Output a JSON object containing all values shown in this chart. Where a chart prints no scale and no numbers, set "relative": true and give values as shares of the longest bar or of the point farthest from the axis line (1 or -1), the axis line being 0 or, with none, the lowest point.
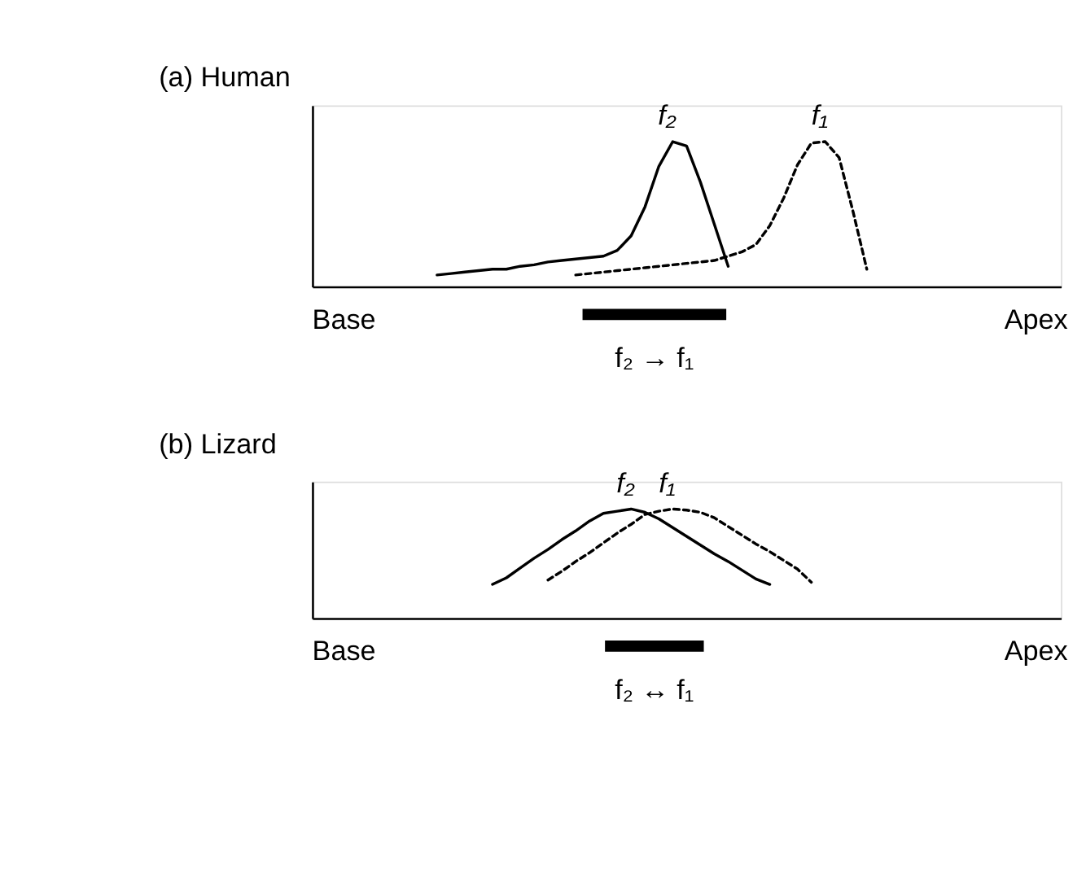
{
  "chart_data": [
    {
      "type": "line",
      "title": "(a) Human",
      "relative": true,
      "tick_labels": false,
      "categories": [
        null,
        null,
        null,
        null,
        null,
        null,
        null,
        null,
        null,
        null,
        null,
        null,
        null,
        null,
        null,
        null,
        null,
        null,
        null,
        null,
        null,
        null,
        null,
        null,
        null,
        null,
        null,
        null,
        null,
        null,
        null,
        null,
        null,
        null,
        null,
        null,
        null,
        null,
        null,
        null,
        null,
        null,
        null,
        null,
        null,
        null,
        null,
        null,
        null,
        null,
        null,
        null,
        null,
        null,
        null
      ],
      "series": [
        {
          "name": "f₂",
          "color": "#000000",
          "line_style": "solid",
          "values": [
            null,
            null,
            null,
            null,
            null,
            null,
            null,
            null,
            null,
            0.08,
            0.09,
            0.1,
            0.11,
            0.12,
            0.12,
            0.14,
            0.15,
            0.17,
            0.18,
            0.19,
            0.2,
            0.21,
            0.25,
            0.35,
            0.55,
            0.83,
            1.0,
            0.97,
            0.72,
            0.43,
            0.14,
            null,
            null,
            null,
            null,
            null,
            null,
            null,
            null,
            null,
            null,
            null,
            null,
            null,
            null,
            null,
            null,
            null,
            null,
            null,
            null,
            null,
            null,
            null,
            null
          ]
        },
        {
          "name": "f₁",
          "color": "#000000",
          "line_style": "dashed",
          "values": [
            null,
            null,
            null,
            null,
            null,
            null,
            null,
            null,
            null,
            null,
            null,
            null,
            null,
            null,
            null,
            null,
            null,
            null,
            null,
            0.08,
            0.09,
            0.1,
            0.11,
            0.12,
            0.13,
            0.14,
            0.15,
            0.16,
            0.17,
            0.18,
            0.21,
            0.24,
            0.29,
            0.42,
            0.61,
            0.84,
            0.99,
            1.0,
            0.89,
            0.52,
            0.12,
            null,
            null,
            null,
            null,
            null,
            null,
            null,
            null,
            null,
            null,
            null,
            null,
            null,
            null
          ]
        }
      ],
      "annotations": [
        "Base",
        "Apex",
        "f₂ → f₁"
      ]
    },
    {
      "type": "line",
      "title": "(b) Lizard",
      "relative": true,
      "tick_labels": false,
      "categories": [
        null,
        null,
        null,
        null,
        null,
        null,
        null,
        null,
        null,
        null,
        null,
        null,
        null,
        null,
        null,
        null,
        null,
        null,
        null,
        null,
        null,
        null,
        null,
        null,
        null,
        null,
        null,
        null,
        null,
        null,
        null,
        null,
        null,
        null,
        null,
        null,
        null,
        null,
        null,
        null,
        null,
        null,
        null,
        null,
        null,
        null,
        null,
        null,
        null,
        null,
        null,
        null,
        null,
        null,
        null
      ],
      "series": [
        {
          "name": "f₂",
          "color": "#000000",
          "line_style": "solid",
          "values": [
            null,
            null,
            null,
            null,
            null,
            null,
            null,
            null,
            null,
            null,
            null,
            null,
            null,
            0.31,
            0.37,
            0.46,
            0.55,
            0.63,
            0.72,
            0.8,
            0.89,
            0.96,
            0.98,
            1.0,
            0.97,
            0.91,
            0.83,
            0.75,
            0.67,
            0.59,
            0.52,
            0.44,
            0.36,
            0.31,
            null,
            null,
            null,
            null,
            null,
            null,
            null,
            null,
            null,
            null,
            null,
            null,
            null,
            null,
            null,
            null,
            null,
            null,
            null,
            null,
            null
          ]
        },
        {
          "name": "f₁",
          "color": "#000000",
          "line_style": "dashed",
          "values": [
            null,
            null,
            null,
            null,
            null,
            null,
            null,
            null,
            null,
            null,
            null,
            null,
            null,
            null,
            null,
            null,
            null,
            0.35,
            0.43,
            0.52,
            0.6,
            0.69,
            0.78,
            0.86,
            0.95,
            0.98,
            1.0,
            0.99,
            0.97,
            0.92,
            0.84,
            0.76,
            0.68,
            0.61,
            0.53,
            0.45,
            0.33,
            null,
            null,
            null,
            null,
            null,
            null,
            null,
            null,
            null,
            null,
            null,
            null,
            null,
            null,
            null,
            null,
            null,
            null
          ]
        }
      ],
      "annotations": [
        "Base",
        "Apex",
        "f₂ ↔ f₁"
      ]
    }
  ]
}
